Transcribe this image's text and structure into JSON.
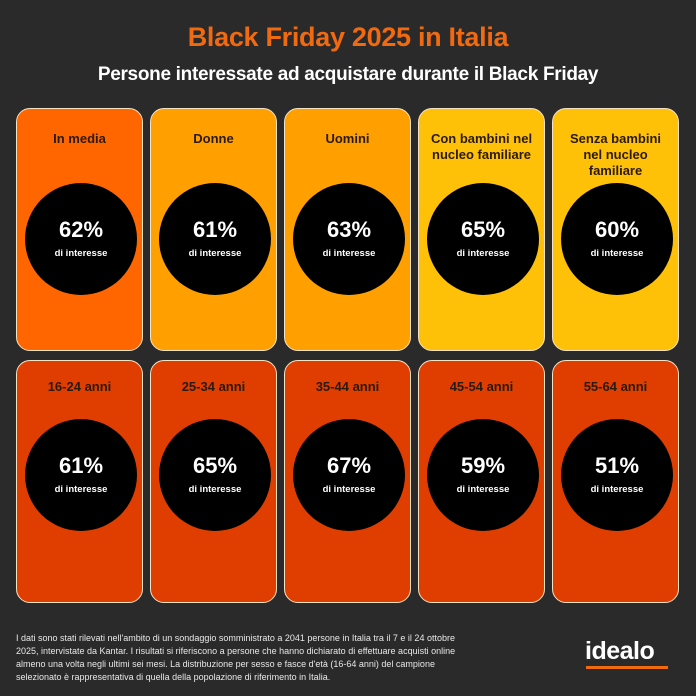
{
  "header": {
    "title": "Black Friday 2025 in Italia",
    "subtitle": "Persone interessate ad acquistare durante il Black Friday"
  },
  "colors": {
    "background": "#2a2a2a",
    "title": "#f26a10",
    "media": "#ff6600",
    "gender": "#ffa000",
    "family": "#ffc107",
    "age": "#e03e00",
    "circle": "#000000"
  },
  "cards_row1": [
    {
      "label": "In media",
      "value": "62%",
      "sub": "di interesse",
      "color": "#ff6600"
    },
    {
      "label": "Donne",
      "value": "61%",
      "sub": "di interesse",
      "color": "#ffa000"
    },
    {
      "label": "Uomini",
      "value": "63%",
      "sub": "di interesse",
      "color": "#ffa000"
    },
    {
      "label": "Con bambini nel nucleo familiare",
      "value": "65%",
      "sub": "di interesse",
      "color": "#ffc107"
    },
    {
      "label": "Senza bambini nel nucleo familiare",
      "value": "60%",
      "sub": "di interesse",
      "color": "#ffc107"
    }
  ],
  "cards_row2": [
    {
      "label": "16-24 anni",
      "value": "61%",
      "sub": "di interesse",
      "color": "#e03e00"
    },
    {
      "label": "25-34 anni",
      "value": "65%",
      "sub": "di interesse",
      "color": "#e03e00"
    },
    {
      "label": "35-44 anni",
      "value": "67%",
      "sub": "di interesse",
      "color": "#e03e00"
    },
    {
      "label": "45-54 anni",
      "value": "59%",
      "sub": "di interesse",
      "color": "#e03e00"
    },
    {
      "label": "55-64 anni",
      "value": "51%",
      "sub": "di interesse",
      "color": "#e03e00"
    }
  ],
  "footer": {
    "note": "I dati sono stati rilevati nell'ambito di un sondaggio somministrato a 2041 persone in Italia tra il 7 e il 24 ottobre 2025, intervistate da Kantar. I risultati si riferiscono a persone che hanno dichiarato di effettuare acquisti online almeno una volta negli ultimi sei mesi. La distribuzione per sesso e fasce d'età (16-64 anni) del campione selezionato è rappresentativa di quella della popolazione di riferimento in Italia.",
    "logo": "idealo"
  },
  "chart_data": {
    "type": "table",
    "title": "Black Friday 2025 in Italia",
    "subtitle": "Persone interessate ad acquistare durante il Black Friday",
    "categories": [
      "In media",
      "Donne",
      "Uomini",
      "Con bambini nel nucleo familiare",
      "Senza bambini nel nucleo familiare",
      "16-24 anni",
      "25-34 anni",
      "35-44 anni",
      "45-54 anni",
      "55-64 anni"
    ],
    "values": [
      62,
      61,
      63,
      65,
      60,
      61,
      65,
      67,
      59,
      51
    ],
    "unit": "% di interesse"
  }
}
